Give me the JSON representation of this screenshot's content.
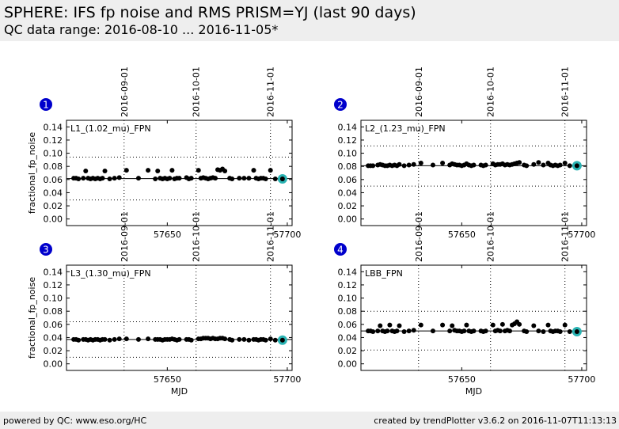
{
  "header": {
    "title": "SPHERE: IFS fp noise and RMS PRISM=YJ (last 90 days)",
    "subtitle": "QC data range: 2016-08-10 ... 2016-11-05*"
  },
  "footer": {
    "left": "powered by QC: www.eso.org/HC",
    "right": "created by trendPlotter v3.6.2 on 2016-11-07T11:13:13"
  },
  "colors": {
    "point": "#000000",
    "last_point": "#2ab3b3",
    "badge": "#0000cc"
  },
  "chart_data": [
    {
      "type": "scatter",
      "badge": "1",
      "label": "L1_(1.02_mu)_FPN",
      "ylabel": "fractional_fp_noise",
      "xlabel": "",
      "xlim": [
        57608,
        57702
      ],
      "ylim": [
        -0.01,
        0.15
      ],
      "yticks": [
        "0.00",
        "0.02",
        "0.04",
        "0.06",
        "0.08",
        "0.10",
        "0.12",
        "0.14"
      ],
      "xticks": [
        "57650",
        "57700"
      ],
      "date_marks": [
        {
          "x": 57632,
          "label": "2016-09-01"
        },
        {
          "x": 57662,
          "label": "2016-10-01"
        },
        {
          "x": 57693,
          "label": "2016-11-01"
        }
      ],
      "hlines": [
        {
          "y": 0.0615,
          "style": "solid"
        },
        {
          "y": 0.094,
          "style": "dotted"
        },
        {
          "y": 0.029,
          "style": "dotted"
        }
      ],
      "x": [
        57611,
        57612,
        57613,
        57615,
        57616,
        57617,
        57618,
        57619,
        57620,
        57621,
        57622,
        57623,
        57624,
        57626,
        57628,
        57630,
        57633,
        57638,
        57642,
        57645,
        57646,
        57647,
        57648,
        57649,
        57650,
        57651,
        57652,
        57653,
        57654,
        57655,
        57658,
        57659,
        57660,
        57663,
        57664,
        57665,
        57666,
        57667,
        57668,
        57669,
        57670,
        57671,
        57672,
        57673,
        57674,
        57676,
        57677,
        57680,
        57682,
        57684,
        57686,
        57687,
        57688,
        57689,
        57690,
        57691,
        57693,
        57695
      ],
      "y": [
        0.062,
        0.062,
        0.061,
        0.062,
        0.073,
        0.062,
        0.061,
        0.062,
        0.061,
        0.062,
        0.061,
        0.062,
        0.073,
        0.061,
        0.062,
        0.063,
        0.074,
        0.062,
        0.074,
        0.061,
        0.073,
        0.062,
        0.061,
        0.062,
        0.061,
        0.062,
        0.074,
        0.061,
        0.062,
        0.062,
        0.063,
        0.061,
        0.062,
        0.074,
        0.062,
        0.063,
        0.062,
        0.061,
        0.062,
        0.063,
        0.062,
        0.075,
        0.074,
        0.076,
        0.073,
        0.062,
        0.061,
        0.062,
        0.062,
        0.062,
        0.074,
        0.062,
        0.061,
        0.062,
        0.062,
        0.061,
        0.074,
        0.061
      ],
      "last": {
        "x": 57698,
        "y": 0.061
      }
    },
    {
      "type": "scatter",
      "badge": "2",
      "label": "L2_(1.23_mu)_FPN",
      "ylabel": "",
      "xlabel": "",
      "xlim": [
        57608,
        57702
      ],
      "ylim": [
        -0.01,
        0.15
      ],
      "yticks": [
        "0.00",
        "0.02",
        "0.04",
        "0.06",
        "0.08",
        "0.10",
        "0.12",
        "0.14"
      ],
      "xticks": [
        "57650",
        "57700"
      ],
      "date_marks": [
        {
          "x": 57632,
          "label": "2016-09-01"
        },
        {
          "x": 57662,
          "label": "2016-10-01"
        },
        {
          "x": 57693,
          "label": "2016-11-01"
        }
      ],
      "hlines": [
        {
          "y": 0.081,
          "style": "solid"
        },
        {
          "y": 0.111,
          "style": "dotted"
        },
        {
          "y": 0.05,
          "style": "dotted"
        }
      ],
      "x": [
        57611,
        57612,
        57613,
        57615,
        57616,
        57617,
        57618,
        57619,
        57620,
        57621,
        57622,
        57623,
        57624,
        57626,
        57628,
        57630,
        57633,
        57638,
        57642,
        57645,
        57646,
        57647,
        57648,
        57649,
        57650,
        57651,
        57652,
        57653,
        57654,
        57655,
        57658,
        57659,
        57660,
        57663,
        57664,
        57665,
        57666,
        57667,
        57668,
        57669,
        57670,
        57671,
        57672,
        57673,
        57674,
        57676,
        57677,
        57680,
        57682,
        57684,
        57686,
        57687,
        57688,
        57689,
        57690,
        57691,
        57693,
        57695
      ],
      "y": [
        0.081,
        0.081,
        0.081,
        0.082,
        0.083,
        0.082,
        0.081,
        0.081,
        0.082,
        0.081,
        0.082,
        0.081,
        0.083,
        0.081,
        0.082,
        0.083,
        0.085,
        0.082,
        0.085,
        0.082,
        0.084,
        0.083,
        0.082,
        0.082,
        0.081,
        0.082,
        0.084,
        0.082,
        0.081,
        0.082,
        0.082,
        0.081,
        0.082,
        0.084,
        0.082,
        0.083,
        0.083,
        0.084,
        0.082,
        0.083,
        0.082,
        0.083,
        0.084,
        0.085,
        0.086,
        0.082,
        0.081,
        0.083,
        0.086,
        0.082,
        0.085,
        0.082,
        0.081,
        0.082,
        0.081,
        0.082,
        0.085,
        0.081
      ],
      "last": {
        "x": 57698,
        "y": 0.081
      }
    },
    {
      "type": "scatter",
      "badge": "3",
      "label": "L3_(1.30_mu)_FPN",
      "ylabel": "fractional_fp_noise",
      "xlabel": "MJD",
      "xlim": [
        57608,
        57702
      ],
      "ylim": [
        -0.01,
        0.15
      ],
      "yticks": [
        "0.00",
        "0.02",
        "0.04",
        "0.06",
        "0.08",
        "0.10",
        "0.12",
        "0.14"
      ],
      "xticks": [
        "57650",
        "57700"
      ],
      "date_marks": [
        {
          "x": 57632,
          "label": "2016-09-01"
        },
        {
          "x": 57662,
          "label": "2016-10-01"
        },
        {
          "x": 57693,
          "label": "2016-11-01"
        }
      ],
      "hlines": [
        {
          "y": 0.037,
          "style": "solid"
        },
        {
          "y": 0.064,
          "style": "dotted"
        },
        {
          "y": 0.01,
          "style": "dotted"
        }
      ],
      "x": [
        57611,
        57612,
        57613,
        57615,
        57616,
        57617,
        57618,
        57619,
        57620,
        57621,
        57622,
        57623,
        57624,
        57626,
        57628,
        57630,
        57633,
        57638,
        57642,
        57645,
        57646,
        57647,
        57648,
        57649,
        57650,
        57651,
        57652,
        57653,
        57654,
        57655,
        57658,
        57659,
        57660,
        57663,
        57664,
        57665,
        57666,
        57667,
        57668,
        57669,
        57670,
        57671,
        57672,
        57673,
        57674,
        57676,
        57677,
        57680,
        57682,
        57684,
        57686,
        57687,
        57688,
        57689,
        57690,
        57691,
        57693,
        57695
      ],
      "y": [
        0.037,
        0.037,
        0.036,
        0.037,
        0.037,
        0.036,
        0.037,
        0.036,
        0.037,
        0.037,
        0.036,
        0.037,
        0.037,
        0.036,
        0.037,
        0.038,
        0.038,
        0.037,
        0.038,
        0.037,
        0.037,
        0.037,
        0.036,
        0.037,
        0.037,
        0.037,
        0.038,
        0.037,
        0.036,
        0.037,
        0.037,
        0.037,
        0.036,
        0.038,
        0.038,
        0.039,
        0.039,
        0.039,
        0.038,
        0.039,
        0.038,
        0.038,
        0.039,
        0.039,
        0.038,
        0.037,
        0.036,
        0.037,
        0.037,
        0.036,
        0.037,
        0.037,
        0.036,
        0.037,
        0.037,
        0.036,
        0.038,
        0.036
      ],
      "last": {
        "x": 57698,
        "y": 0.036
      }
    },
    {
      "type": "scatter",
      "badge": "4",
      "label": "LBB_FPN",
      "ylabel": "",
      "xlabel": "MJD",
      "xlim": [
        57608,
        57702
      ],
      "ylim": [
        -0.01,
        0.15
      ],
      "yticks": [
        "0.00",
        "0.02",
        "0.04",
        "0.06",
        "0.08",
        "0.10",
        "0.12",
        "0.14"
      ],
      "xticks": [
        "57650",
        "57700"
      ],
      "date_marks": [
        {
          "x": 57632,
          "label": "2016-09-01"
        },
        {
          "x": 57662,
          "label": "2016-10-01"
        },
        {
          "x": 57693,
          "label": "2016-11-01"
        }
      ],
      "hlines": [
        {
          "y": 0.05,
          "style": "solid"
        },
        {
          "y": 0.08,
          "style": "dotted"
        },
        {
          "y": 0.021,
          "style": "dotted"
        }
      ],
      "x": [
        57611,
        57612,
        57613,
        57615,
        57616,
        57617,
        57618,
        57619,
        57620,
        57621,
        57622,
        57623,
        57624,
        57626,
        57628,
        57630,
        57633,
        57638,
        57642,
        57645,
        57646,
        57647,
        57648,
        57649,
        57650,
        57651,
        57652,
        57653,
        57654,
        57655,
        57658,
        57659,
        57660,
        57663,
        57664,
        57665,
        57666,
        57667,
        57668,
        57669,
        57670,
        57671,
        57672,
        57673,
        57674,
        57676,
        57677,
        57680,
        57682,
        57684,
        57686,
        57687,
        57688,
        57689,
        57690,
        57691,
        57693,
        57695
      ],
      "y": [
        0.05,
        0.05,
        0.049,
        0.05,
        0.058,
        0.05,
        0.049,
        0.05,
        0.059,
        0.05,
        0.049,
        0.05,
        0.058,
        0.049,
        0.05,
        0.051,
        0.059,
        0.05,
        0.059,
        0.05,
        0.058,
        0.051,
        0.05,
        0.05,
        0.049,
        0.05,
        0.059,
        0.05,
        0.049,
        0.05,
        0.05,
        0.049,
        0.05,
        0.059,
        0.05,
        0.051,
        0.05,
        0.06,
        0.05,
        0.051,
        0.05,
        0.059,
        0.061,
        0.064,
        0.06,
        0.05,
        0.049,
        0.058,
        0.05,
        0.049,
        0.059,
        0.05,
        0.049,
        0.05,
        0.05,
        0.049,
        0.059,
        0.049
      ],
      "last": {
        "x": 57698,
        "y": 0.049
      }
    }
  ]
}
